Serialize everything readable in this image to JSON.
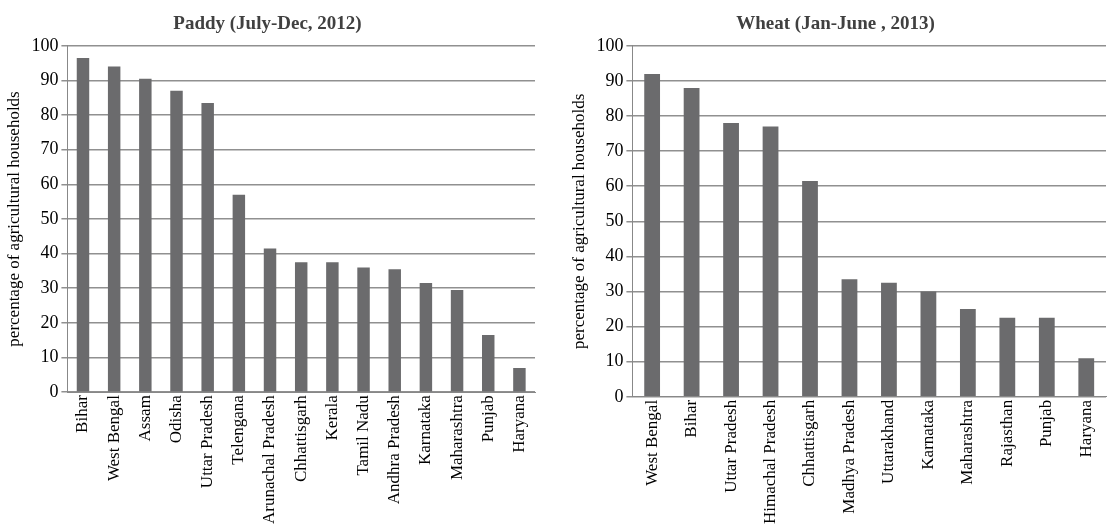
{
  "chart_data": [
    {
      "type": "bar",
      "title": "Paddy (July-Dec, 2012)",
      "ylabel": "percentage of agricultural households",
      "categories": [
        "Bihar",
        "West Bengal",
        "Assam",
        "Odisha",
        "Uttar Pradesh",
        "Telengana",
        "Arunachal Pradesh",
        "Chhattisgarh",
        "Kerala",
        "Tamil Nadu",
        "Andhra Pradesh",
        "Karnataka",
        "Maharashtra",
        "Punjab",
        "Haryana"
      ],
      "values": [
        96.5,
        94,
        90.5,
        87,
        83.5,
        57,
        41.5,
        37.5,
        37.5,
        36,
        35.5,
        31.5,
        29.5,
        16.5,
        7
      ],
      "color": "#6b6b6d",
      "ylim": [
        0,
        100
      ],
      "yticks": [
        0,
        10,
        20,
        30,
        40,
        50,
        60,
        70,
        80,
        90,
        100
      ],
      "grid": "y",
      "legend": false
    },
    {
      "type": "bar",
      "title": "Wheat (Jan-June , 2013)",
      "ylabel": "percentage of agricultural households",
      "categories": [
        "West Bengal",
        "Bihar",
        "Uttar Pradesh",
        "Himachal Pradesh",
        "Chhattisgarh",
        "Madhya Pradesh",
        "Uttarakhand",
        "Karnataka",
        "Maharashtra",
        "Rajasthan",
        "Punjab",
        "Haryana"
      ],
      "values": [
        92,
        88,
        78,
        77,
        61.5,
        33.5,
        32.5,
        30,
        25,
        22.5,
        22.5,
        11
      ],
      "color": "#6b6b6d",
      "ylim": [
        0,
        100
      ],
      "yticks": [
        0,
        10,
        20,
        30,
        40,
        50,
        60,
        70,
        80,
        90,
        100
      ],
      "grid": "y",
      "legend": false
    }
  ]
}
